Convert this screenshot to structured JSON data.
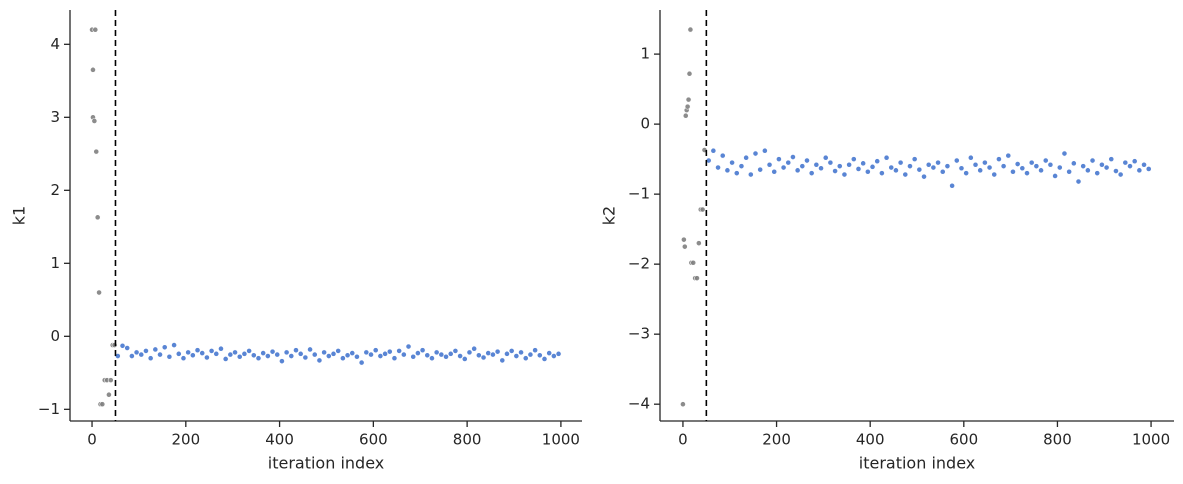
{
  "chart_data": [
    {
      "type": "scatter",
      "xlabel": "iteration index",
      "ylabel": "k1",
      "xlim": [
        -47,
        1045
      ],
      "ylim": [
        -1.16,
        4.47
      ],
      "xticks": [
        0,
        200,
        400,
        600,
        800,
        1000
      ],
      "yticks": [
        {
          "value": -1,
          "label": "−1"
        },
        0,
        1,
        2,
        3,
        4
      ],
      "vlines": [
        50
      ],
      "series": [
        {
          "color": "#808080",
          "x": [
            0,
            2,
            2,
            5,
            7,
            9,
            12,
            15,
            18,
            22,
            27,
            32,
            36,
            40,
            44,
            48
          ],
          "values": [
            4.2,
            3.65,
            3.0,
            2.95,
            4.2,
            2.53,
            1.63,
            0.6,
            -0.93,
            -0.93,
            -0.6,
            -0.6,
            -0.8,
            -0.6,
            -0.12,
            -0.12
          ]
        },
        {
          "color": "#4878d0",
          "x": [
            55,
            65,
            75,
            85,
            95,
            105,
            115,
            125,
            135,
            145,
            155,
            165,
            175,
            185,
            195,
            205,
            215,
            225,
            235,
            245,
            255,
            265,
            275,
            285,
            295,
            305,
            315,
            325,
            335,
            345,
            355,
            365,
            375,
            385,
            395,
            405,
            415,
            425,
            435,
            445,
            455,
            465,
            475,
            485,
            495,
            505,
            515,
            525,
            535,
            545,
            555,
            565,
            575,
            585,
            595,
            605,
            615,
            625,
            635,
            645,
            655,
            665,
            675,
            685,
            695,
            705,
            715,
            725,
            735,
            745,
            755,
            765,
            775,
            785,
            795,
            805,
            815,
            825,
            835,
            845,
            855,
            865,
            875,
            885,
            895,
            905,
            915,
            925,
            935,
            945,
            955,
            965,
            975,
            985,
            995
          ],
          "values": [
            -0.27,
            -0.13,
            -0.16,
            -0.27,
            -0.22,
            -0.25,
            -0.2,
            -0.3,
            -0.18,
            -0.25,
            -0.15,
            -0.28,
            -0.12,
            -0.24,
            -0.3,
            -0.22,
            -0.26,
            -0.19,
            -0.23,
            -0.29,
            -0.2,
            -0.24,
            -0.17,
            -0.31,
            -0.25,
            -0.22,
            -0.28,
            -0.24,
            -0.2,
            -0.26,
            -0.3,
            -0.23,
            -0.27,
            -0.21,
            -0.25,
            -0.34,
            -0.22,
            -0.27,
            -0.19,
            -0.24,
            -0.29,
            -0.18,
            -0.25,
            -0.33,
            -0.22,
            -0.27,
            -0.24,
            -0.2,
            -0.3,
            -0.26,
            -0.23,
            -0.28,
            -0.36,
            -0.22,
            -0.25,
            -0.19,
            -0.27,
            -0.24,
            -0.21,
            -0.3,
            -0.2,
            -0.25,
            -0.14,
            -0.28,
            -0.23,
            -0.19,
            -0.26,
            -0.3,
            -0.22,
            -0.25,
            -0.28,
            -0.24,
            -0.2,
            -0.27,
            -0.31,
            -0.22,
            -0.17,
            -0.26,
            -0.29,
            -0.23,
            -0.25,
            -0.21,
            -0.33,
            -0.24,
            -0.2,
            -0.27,
            -0.22,
            -0.3,
            -0.25,
            -0.19,
            -0.26,
            -0.31,
            -0.23,
            -0.27,
            -0.24
          ]
        }
      ]
    },
    {
      "type": "scatter",
      "xlabel": "iteration index",
      "ylabel": "k2",
      "xlim": [
        -49,
        1049
      ],
      "ylim": [
        -4.24,
        1.63
      ],
      "xticks": [
        0,
        200,
        400,
        600,
        800,
        1000
      ],
      "yticks": [
        {
          "value": -4,
          "label": "−4"
        },
        {
          "value": -3,
          "label": "−3"
        },
        {
          "value": -2,
          "label": "−2"
        },
        {
          "value": -1,
          "label": "−1"
        },
        0,
        1
      ],
      "vlines": [
        50
      ],
      "series": [
        {
          "color": "#808080",
          "x": [
            0,
            2,
            4,
            6,
            8,
            10,
            12,
            14,
            16,
            18,
            22,
            26,
            30,
            34,
            38,
            42,
            46
          ],
          "values": [
            -4.0,
            -1.65,
            -1.75,
            0.12,
            0.2,
            0.25,
            0.35,
            0.72,
            1.35,
            -1.98,
            -1.98,
            -2.2,
            -2.2,
            -1.7,
            -1.22,
            -1.22,
            -0.37
          ]
        },
        {
          "color": "#4878d0",
          "x": [
            55,
            65,
            75,
            85,
            95,
            105,
            115,
            125,
            135,
            145,
            155,
            165,
            175,
            185,
            195,
            205,
            215,
            225,
            235,
            245,
            255,
            265,
            275,
            285,
            295,
            305,
            315,
            325,
            335,
            345,
            355,
            365,
            375,
            385,
            395,
            405,
            415,
            425,
            435,
            445,
            455,
            465,
            475,
            485,
            495,
            505,
            515,
            525,
            535,
            545,
            555,
            565,
            575,
            585,
            595,
            605,
            615,
            625,
            635,
            645,
            655,
            665,
            675,
            685,
            695,
            705,
            715,
            725,
            735,
            745,
            755,
            765,
            775,
            785,
            795,
            805,
            815,
            825,
            835,
            845,
            855,
            865,
            875,
            885,
            895,
            905,
            915,
            925,
            935,
            945,
            955,
            965,
            975,
            985,
            995
          ],
          "values": [
            -0.52,
            -0.38,
            -0.62,
            -0.45,
            -0.66,
            -0.55,
            -0.7,
            -0.6,
            -0.48,
            -0.72,
            -0.42,
            -0.65,
            -0.38,
            -0.58,
            -0.68,
            -0.5,
            -0.62,
            -0.55,
            -0.47,
            -0.66,
            -0.6,
            -0.52,
            -0.7,
            -0.58,
            -0.63,
            -0.48,
            -0.55,
            -0.67,
            -0.6,
            -0.72,
            -0.58,
            -0.5,
            -0.64,
            -0.56,
            -0.68,
            -0.61,
            -0.53,
            -0.7,
            -0.48,
            -0.62,
            -0.66,
            -0.55,
            -0.72,
            -0.6,
            -0.5,
            -0.65,
            -0.75,
            -0.58,
            -0.62,
            -0.55,
            -0.68,
            -0.6,
            -0.88,
            -0.52,
            -0.63,
            -0.7,
            -0.48,
            -0.58,
            -0.66,
            -0.55,
            -0.62,
            -0.72,
            -0.5,
            -0.6,
            -0.45,
            -0.68,
            -0.57,
            -0.63,
            -0.7,
            -0.55,
            -0.6,
            -0.66,
            -0.52,
            -0.58,
            -0.74,
            -0.62,
            -0.42,
            -0.68,
            -0.56,
            -0.82,
            -0.6,
            -0.66,
            -0.52,
            -0.7,
            -0.58,
            -0.62,
            -0.5,
            -0.67,
            -0.72,
            -0.55,
            -0.6,
            -0.53,
            -0.66,
            -0.58,
            -0.64
          ]
        }
      ]
    }
  ]
}
